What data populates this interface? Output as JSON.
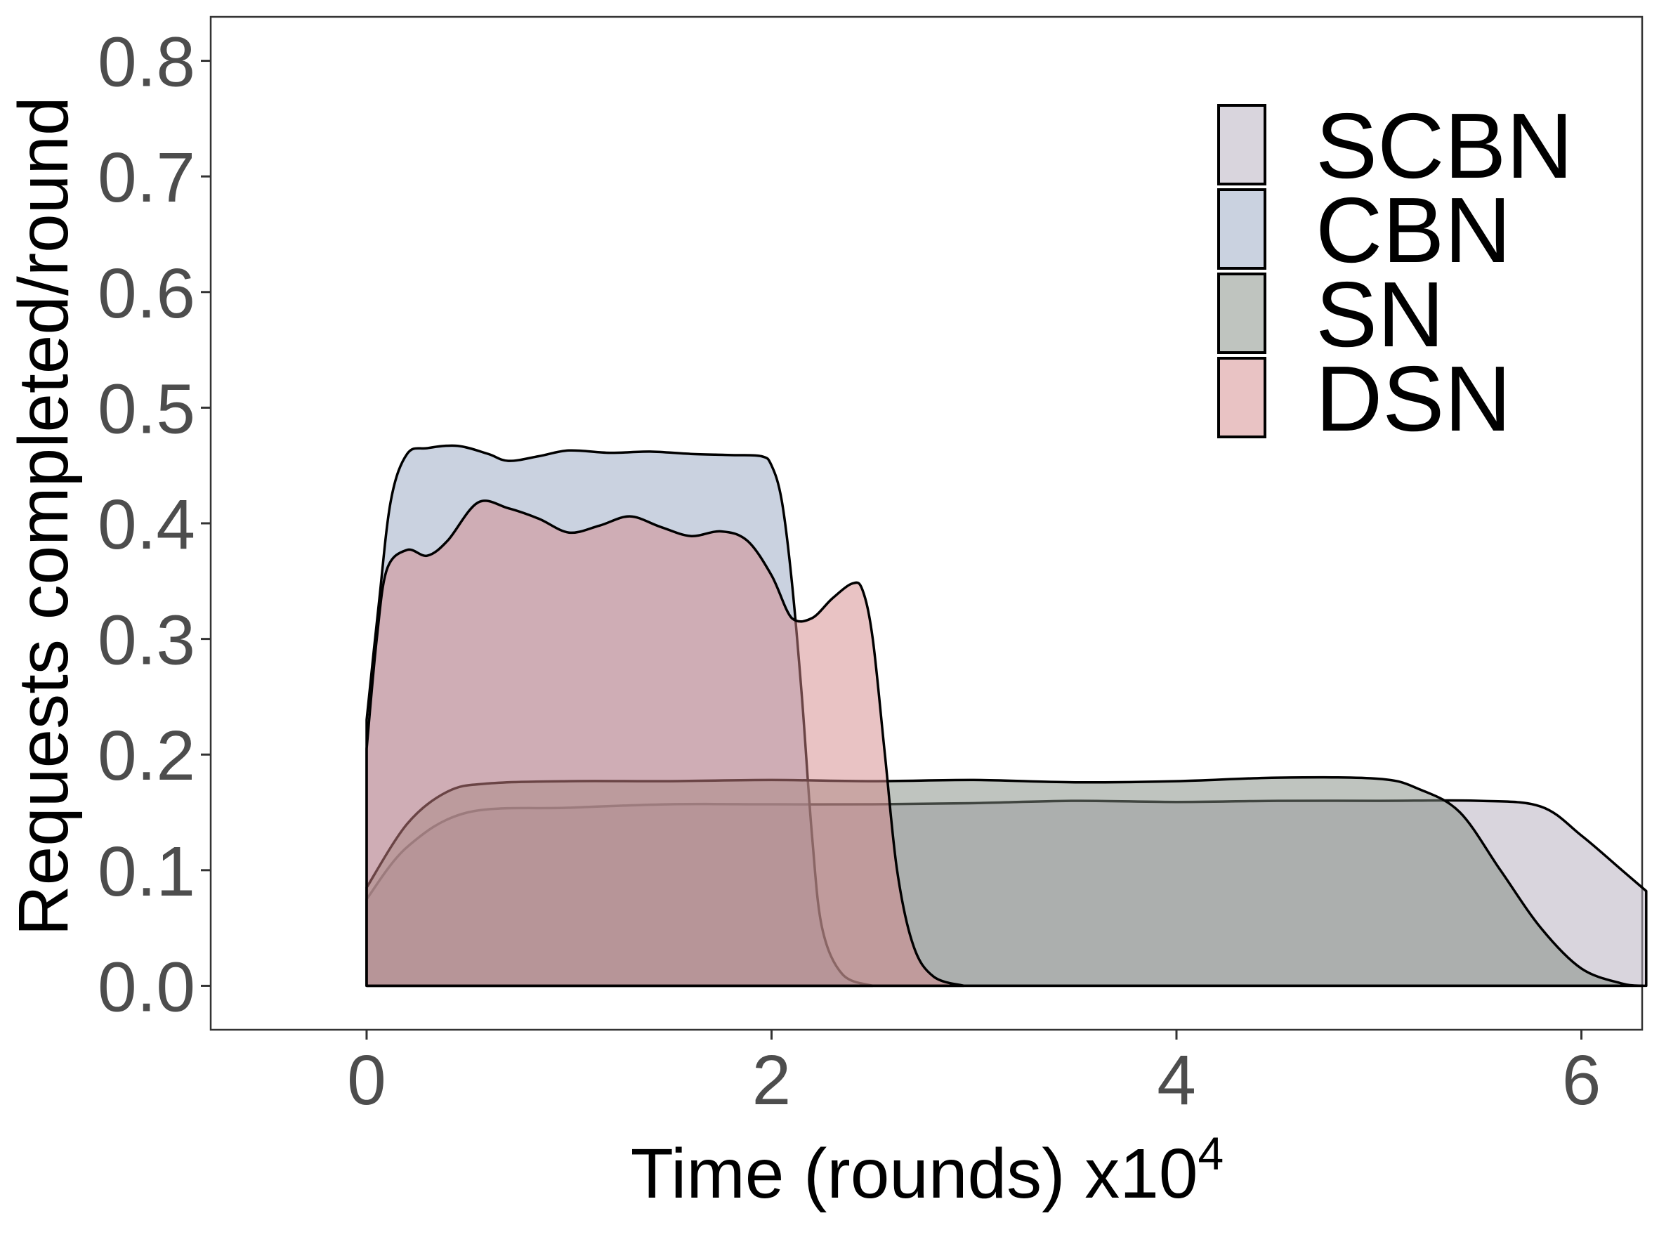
{
  "chart_data": {
    "type": "area",
    "title": "",
    "xlabel": "Time (rounds) x10",
    "xlabel_superscript": "4",
    "ylabel": "Requests completed/round",
    "xlim": [
      -0.77,
      6.3
    ],
    "ylim": [
      -0.038,
      0.838
    ],
    "x_ticks": [
      0,
      2,
      4,
      6
    ],
    "x_tick_labels": [
      "0",
      "2",
      "4",
      "6"
    ],
    "y_ticks": [
      0.0,
      0.1,
      0.2,
      0.3,
      0.4,
      0.5,
      0.6,
      0.7,
      0.8
    ],
    "y_tick_labels": [
      "0.0",
      "0.1",
      "0.2",
      "0.3",
      "0.4",
      "0.5",
      "0.6",
      "0.7",
      "0.8"
    ],
    "grid": false,
    "legend_position": "top-right",
    "legend_order": [
      "SCBN",
      "CBN",
      "SN",
      "DSN"
    ],
    "draw_order": [
      "SCBN",
      "CBN",
      "SN",
      "DSN"
    ],
    "series": [
      {
        "name": "SCBN",
        "color": "#b4acbc",
        "points": [
          [
            0,
            0
          ],
          [
            0,
            0.075
          ],
          [
            0.2,
            0.12
          ],
          [
            0.5,
            0.15
          ],
          [
            1.0,
            0.154
          ],
          [
            1.5,
            0.157
          ],
          [
            2.0,
            0.157
          ],
          [
            2.5,
            0.157
          ],
          [
            3.0,
            0.158
          ],
          [
            3.5,
            0.16
          ],
          [
            4.0,
            0.159
          ],
          [
            4.5,
            0.16
          ],
          [
            5.0,
            0.16
          ],
          [
            5.5,
            0.16
          ],
          [
            5.8,
            0.155
          ],
          [
            6.0,
            0.13
          ],
          [
            6.2,
            0.1
          ],
          [
            6.32,
            0.082
          ],
          [
            6.32,
            0
          ]
        ]
      },
      {
        "name": "CBN",
        "color": "#95a6c2",
        "points": [
          [
            0,
            0
          ],
          [
            0,
            0.23
          ],
          [
            0.06,
            0.33
          ],
          [
            0.12,
            0.42
          ],
          [
            0.2,
            0.46
          ],
          [
            0.3,
            0.465
          ],
          [
            0.45,
            0.467
          ],
          [
            0.6,
            0.46
          ],
          [
            0.7,
            0.454
          ],
          [
            0.85,
            0.458
          ],
          [
            1.0,
            0.463
          ],
          [
            1.2,
            0.461
          ],
          [
            1.4,
            0.462
          ],
          [
            1.6,
            0.46
          ],
          [
            1.8,
            0.459
          ],
          [
            1.95,
            0.458
          ],
          [
            2.0,
            0.45
          ],
          [
            2.05,
            0.42
          ],
          [
            2.1,
            0.35
          ],
          [
            2.15,
            0.25
          ],
          [
            2.2,
            0.13
          ],
          [
            2.25,
            0.05
          ],
          [
            2.35,
            0.01
          ],
          [
            2.5,
            0
          ],
          [
            2.5,
            0
          ]
        ]
      },
      {
        "name": "SN",
        "color": "#7f8a7f",
        "points": [
          [
            0,
            0
          ],
          [
            0,
            0.085
          ],
          [
            0.2,
            0.14
          ],
          [
            0.4,
            0.168
          ],
          [
            0.6,
            0.175
          ],
          [
            1.0,
            0.177
          ],
          [
            1.5,
            0.177
          ],
          [
            2.0,
            0.178
          ],
          [
            2.5,
            0.177
          ],
          [
            3.0,
            0.178
          ],
          [
            3.5,
            0.176
          ],
          [
            4.0,
            0.177
          ],
          [
            4.5,
            0.18
          ],
          [
            5.0,
            0.179
          ],
          [
            5.2,
            0.17
          ],
          [
            5.4,
            0.15
          ],
          [
            5.6,
            0.1
          ],
          [
            5.8,
            0.05
          ],
          [
            6.0,
            0.015
          ],
          [
            6.2,
            0.002
          ],
          [
            6.3,
            0
          ],
          [
            6.3,
            0
          ]
        ]
      },
      {
        "name": "DSN",
        "color": "#d4878a",
        "points": [
          [
            0,
            0
          ],
          [
            0,
            0.205
          ],
          [
            0.05,
            0.3
          ],
          [
            0.1,
            0.36
          ],
          [
            0.2,
            0.377
          ],
          [
            0.3,
            0.372
          ],
          [
            0.4,
            0.385
          ],
          [
            0.55,
            0.418
          ],
          [
            0.7,
            0.413
          ],
          [
            0.85,
            0.404
          ],
          [
            1.0,
            0.392
          ],
          [
            1.15,
            0.398
          ],
          [
            1.3,
            0.406
          ],
          [
            1.45,
            0.397
          ],
          [
            1.6,
            0.389
          ],
          [
            1.75,
            0.393
          ],
          [
            1.88,
            0.385
          ],
          [
            2.0,
            0.355
          ],
          [
            2.1,
            0.318
          ],
          [
            2.2,
            0.318
          ],
          [
            2.3,
            0.335
          ],
          [
            2.4,
            0.348
          ],
          [
            2.45,
            0.342
          ],
          [
            2.5,
            0.3
          ],
          [
            2.56,
            0.2
          ],
          [
            2.62,
            0.1
          ],
          [
            2.7,
            0.035
          ],
          [
            2.8,
            0.008
          ],
          [
            2.95,
            0
          ],
          [
            2.95,
            0
          ]
        ]
      }
    ]
  }
}
